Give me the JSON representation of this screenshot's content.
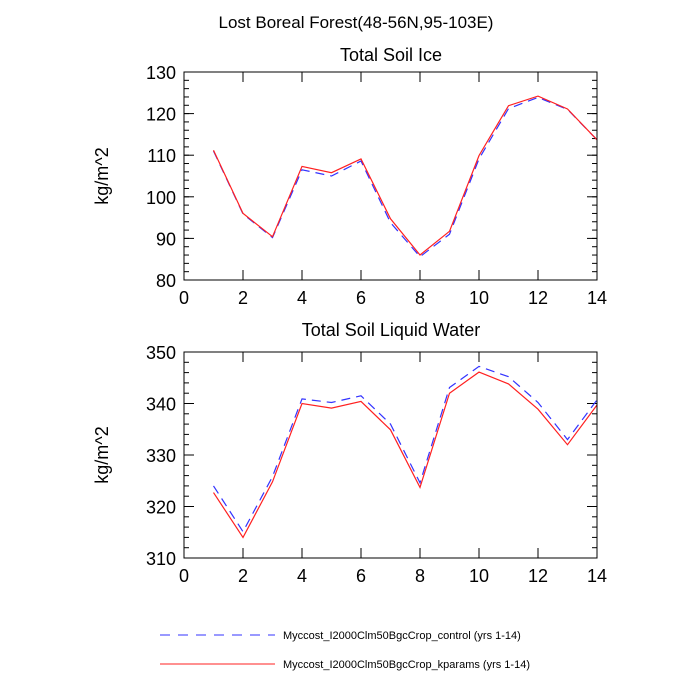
{
  "title": "Lost Boreal Forest(48-56N,95-103E)",
  "colors": {
    "control": "#3333ff",
    "kparams": "#ff2020"
  },
  "legend": [
    {
      "label": "Myccost_I2000Clm50BgcCrop_control (yrs 1-14)",
      "style": "dashed",
      "color": "#3333ff"
    },
    {
      "label": "Myccost_I2000Clm50BgcCrop_kparams (yrs 1-14)",
      "style": "solid",
      "color": "#ff2020"
    }
  ],
  "chart_data": [
    {
      "type": "line",
      "title": "Total Soil Ice",
      "xlabel": "",
      "ylabel": "kg/m^2",
      "xlim": [
        0,
        14
      ],
      "ylim": [
        80,
        130
      ],
      "xticks": [
        0,
        2,
        4,
        6,
        8,
        10,
        12,
        14
      ],
      "yticks": [
        80,
        90,
        100,
        110,
        120,
        130
      ],
      "x": [
        1,
        2,
        3,
        4,
        5,
        6,
        7,
        8,
        9,
        10,
        11,
        12,
        13,
        14
      ],
      "series": [
        {
          "name": "Myccost_I2000Clm50BgcCrop_control (yrs 1-14)",
          "style": "dashed",
          "values": [
            111.0,
            95.9,
            90.2,
            106.5,
            105.0,
            108.6,
            93.8,
            85.6,
            91.0,
            109.1,
            121.2,
            123.9,
            121.0,
            113.7
          ]
        },
        {
          "name": "Myccost_I2000Clm50BgcCrop_kparams (yrs 1-14)",
          "style": "solid",
          "values": [
            111.2,
            96.0,
            90.4,
            107.3,
            105.8,
            109.1,
            94.7,
            86.0,
            91.7,
            109.9,
            121.9,
            124.2,
            121.1,
            113.7
          ]
        }
      ]
    },
    {
      "type": "line",
      "title": "Total Soil Liquid Water",
      "xlabel": "",
      "ylabel": "kg/m^2",
      "xlim": [
        0,
        14
      ],
      "ylim": [
        310,
        350
      ],
      "xticks": [
        0,
        2,
        4,
        6,
        8,
        10,
        12,
        14
      ],
      "yticks": [
        310,
        320,
        330,
        340,
        350
      ],
      "x": [
        1,
        2,
        3,
        4,
        5,
        6,
        7,
        8,
        9,
        10,
        11,
        12,
        13,
        14
      ],
      "series": [
        {
          "name": "Myccost_I2000Clm50BgcCrop_control (yrs 1-14)",
          "style": "dashed",
          "values": [
            324.0,
            315.1,
            325.8,
            340.9,
            340.2,
            341.5,
            336.0,
            324.6,
            343.1,
            347.2,
            345.2,
            340.2,
            333.0,
            340.7
          ]
        },
        {
          "name": "Myccost_I2000Clm50BgcCrop_kparams (yrs 1-14)",
          "style": "solid",
          "values": [
            322.7,
            314.0,
            324.8,
            340.0,
            339.1,
            340.4,
            334.9,
            323.7,
            342.0,
            346.1,
            343.8,
            338.9,
            332.0,
            339.7
          ]
        }
      ]
    }
  ]
}
